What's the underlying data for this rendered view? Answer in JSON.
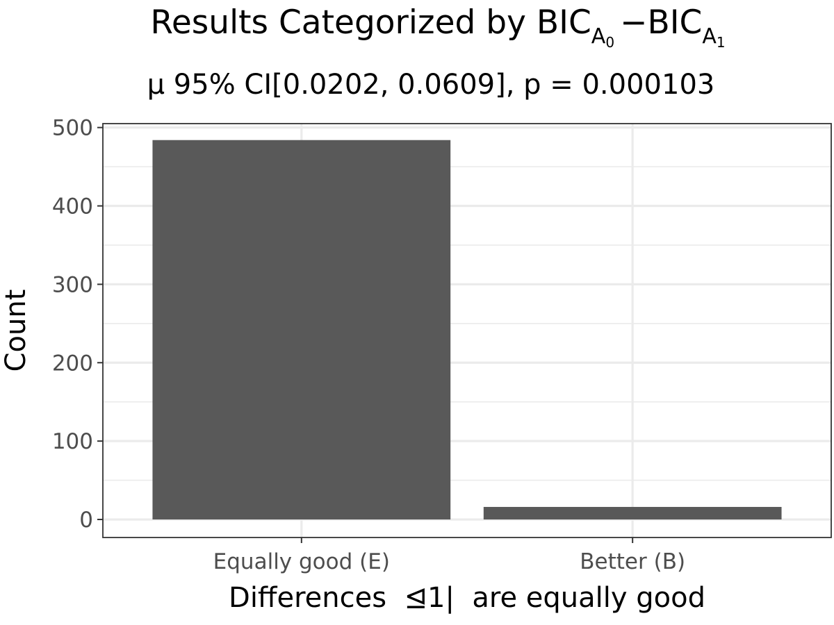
{
  "chart_data": {
    "type": "bar",
    "title": {
      "main": "Results Categorized by BIC",
      "sub_1": "A",
      "sub_1_index": "0",
      "minus": "−",
      "main_2": "BIC",
      "sub_2": "A",
      "sub_2_index": "1"
    },
    "subtitle": "μ 95% CI[0.0202, 0.0609], p = 0.000103",
    "xlabel": "Differences  ⊴1|  are equally good",
    "ylabel": "Count",
    "categories": [
      "Equally good (E)",
      "Better (B)"
    ],
    "values": [
      484,
      16
    ],
    "ylim": [
      -23,
      505
    ],
    "y_ticks": [
      0,
      100,
      200,
      300,
      400,
      500
    ],
    "y_tick_labels": [
      "0",
      "100",
      "200",
      "300",
      "400",
      "500"
    ],
    "grid": true,
    "legend": "none",
    "bar_color": "#595959",
    "grid_color": "#ebebeb",
    "panel_border_color": "#333333"
  }
}
